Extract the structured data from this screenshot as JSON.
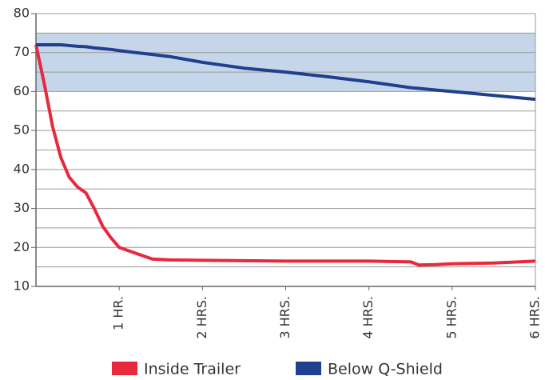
{
  "chart_data": {
    "type": "line",
    "x": [
      0,
      0.1,
      0.2,
      0.3,
      0.4,
      0.5,
      0.6,
      0.7,
      0.8,
      0.9,
      1.0,
      1.2,
      1.4,
      1.6,
      2,
      2.5,
      3,
      3.5,
      4,
      4.5,
      4.6,
      4.8,
      5,
      5.5,
      6
    ],
    "series": [
      {
        "name": "Inside Trailer",
        "color": "#e8283c",
        "values": [
          72,
          62,
          51,
          43,
          38,
          35.5,
          34,
          30,
          25.5,
          22.5,
          20,
          18.5,
          17,
          16.8,
          16.7,
          16.6,
          16.5,
          16.5,
          16.5,
          16.3,
          15.5,
          15.6,
          15.8,
          16,
          16.5
        ]
      },
      {
        "name": "Below Q-Shield",
        "color": "#1f3f8f",
        "values": [
          72,
          72,
          72,
          72,
          71.8,
          71.6,
          71.5,
          71.2,
          71,
          70.8,
          70.5,
          70,
          69.5,
          69,
          67.5,
          66,
          65,
          63.8,
          62.5,
          61,
          60.8,
          60.4,
          60,
          59,
          58
        ]
      }
    ],
    "xlim": [
      0,
      6
    ],
    "xticks": [
      {
        "value": 1,
        "label": "1 HR."
      },
      {
        "value": 2,
        "label": "2 HRS."
      },
      {
        "value": 3,
        "label": "3 HRS."
      },
      {
        "value": 4,
        "label": "4 HRS."
      },
      {
        "value": 5,
        "label": "5 HRS."
      },
      {
        "value": 6,
        "label": "6 HRS."
      }
    ],
    "ylim": [
      10,
      80
    ],
    "yticks": [
      10,
      20,
      30,
      40,
      50,
      60,
      70,
      80
    ],
    "minor_yticks": [
      15,
      25,
      35,
      45,
      55,
      65,
      75
    ],
    "band": [
      60,
      75
    ],
    "band_color": "#c6d6ea",
    "grid": true,
    "legend": "bottom"
  }
}
